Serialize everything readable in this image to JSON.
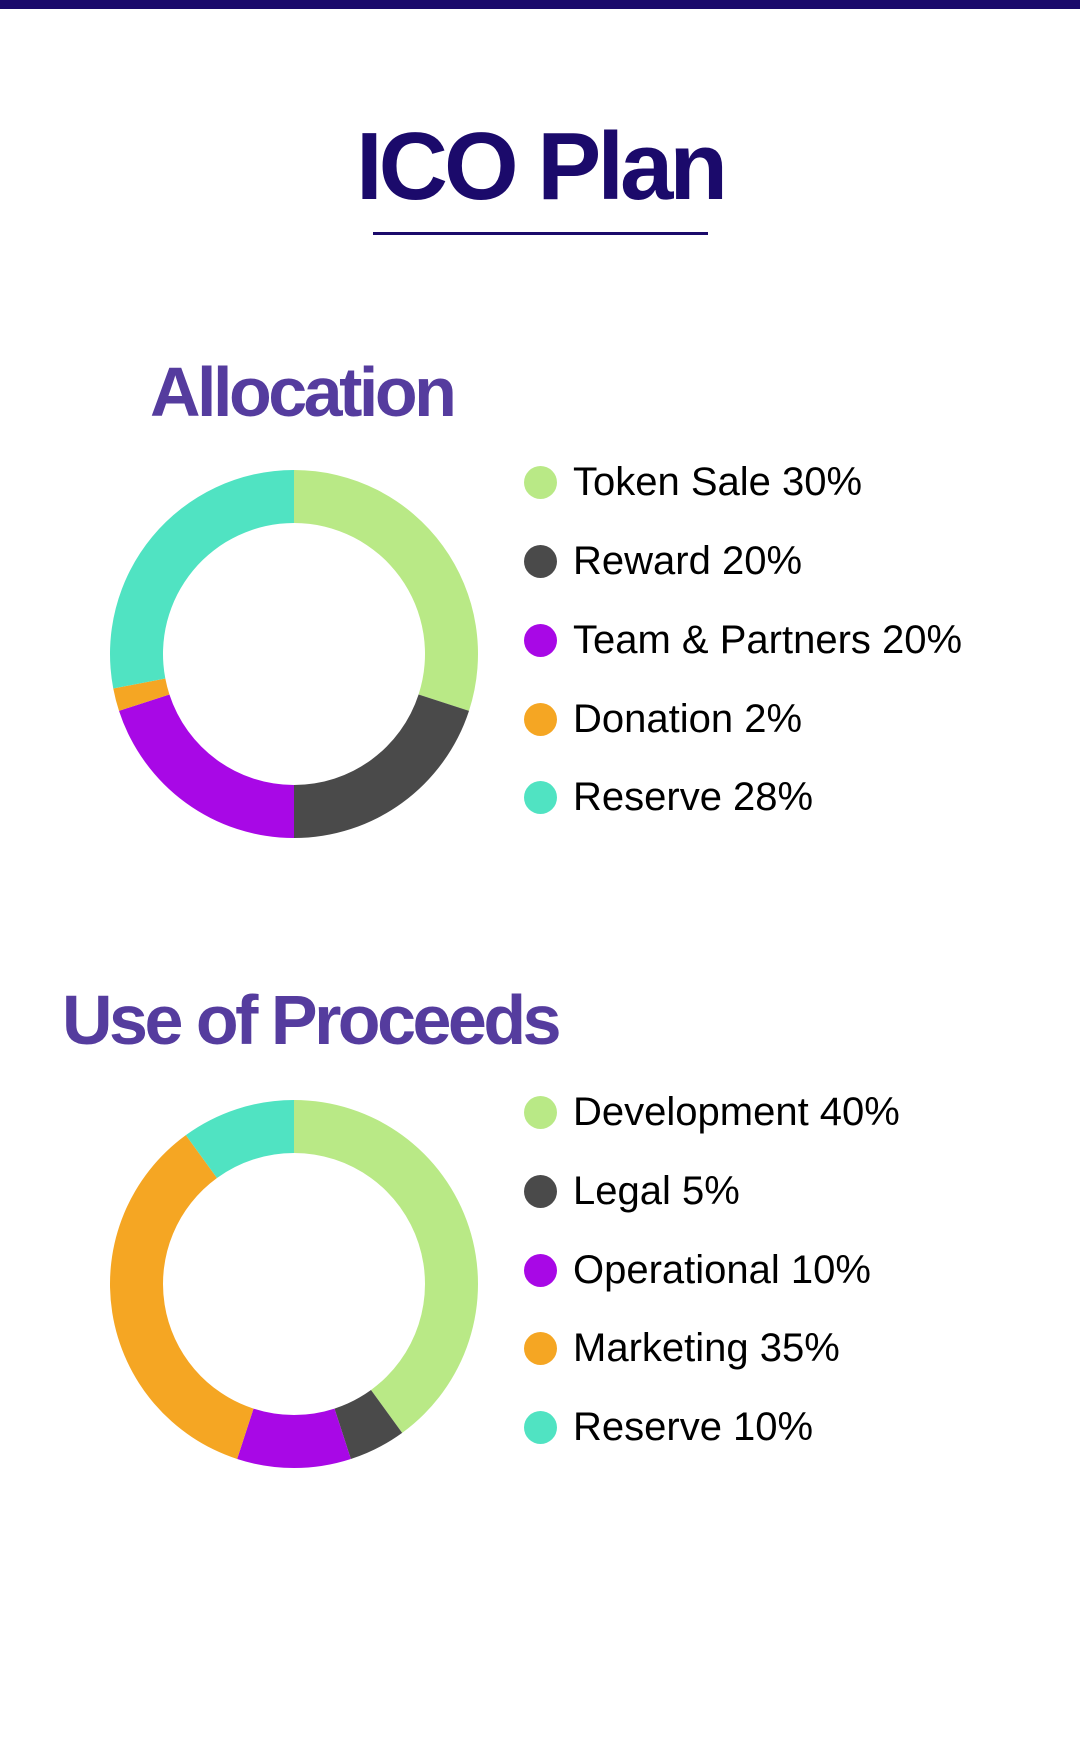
{
  "header": {
    "title": "ICO Plan"
  },
  "chart_data": [
    {
      "type": "pie",
      "donut": true,
      "title": "Allocation",
      "legend_position": "right",
      "slices": [
        {
          "label": "Token Sale 30%",
          "value": 30,
          "color": "#b9e986"
        },
        {
          "label": "Reward 20%",
          "value": 20,
          "color": "#4a4a4a"
        },
        {
          "label": "Team & Partners 20%",
          "value": 20,
          "color": "#a808e6"
        },
        {
          "label": "Donation 2%",
          "value": 2,
          "color": "#f5a623"
        },
        {
          "label": "Reserve 28%",
          "value": 28,
          "color": "#50e3c2"
        }
      ]
    },
    {
      "type": "pie",
      "donut": true,
      "title": "Use of Proceeds",
      "legend_position": "right",
      "slices": [
        {
          "label": "Development 40%",
          "value": 40,
          "color": "#b9e986"
        },
        {
          "label": "Legal 5%",
          "value": 5,
          "color": "#4a4a4a"
        },
        {
          "label": "Operational 10%",
          "value": 10,
          "color": "#a808e6"
        },
        {
          "label": "Marketing 35%",
          "value": 35,
          "color": "#f5a623"
        },
        {
          "label": "Reserve 10%",
          "value": 10,
          "color": "#50e3c2"
        }
      ]
    }
  ],
  "colors": {
    "brand_dark": "#1b0a6b",
    "section_title": "#553c9e"
  }
}
